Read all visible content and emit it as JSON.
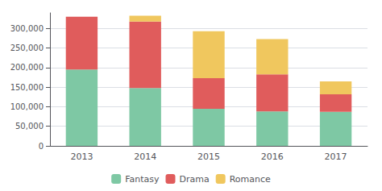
{
  "chart_data": {
    "type": "bar",
    "categories": [
      "2013",
      "2014",
      "2015",
      "2016",
      "2017"
    ],
    "series": [
      {
        "name": "Fantasy",
        "color": "#7ec8a4",
        "values": [
          195000,
          148000,
          95000,
          88000,
          87000
        ]
      },
      {
        "name": "Drama",
        "color": "#e05c5c",
        "values": [
          135000,
          170000,
          78000,
          95000,
          45000
        ]
      },
      {
        "name": "Romance",
        "color": "#f0c75e",
        "values": [
          0,
          15000,
          120000,
          90000,
          33000
        ]
      }
    ],
    "ylim": [
      0,
      340000
    ],
    "yticks": [
      0,
      {
        "value": 50000,
        "label": "50,000"
      },
      {
        "value": 100000,
        "label": "100,000"
      },
      {
        "value": 150000,
        "label": "150,000"
      },
      {
        "value": 200000,
        "label": "200,000"
      },
      {
        "value": 250000,
        "label": "250,000"
      },
      {
        "value": 300000,
        "label": "300,000"
      }
    ],
    "stacked": true,
    "grid": true,
    "legend": "bottom"
  }
}
